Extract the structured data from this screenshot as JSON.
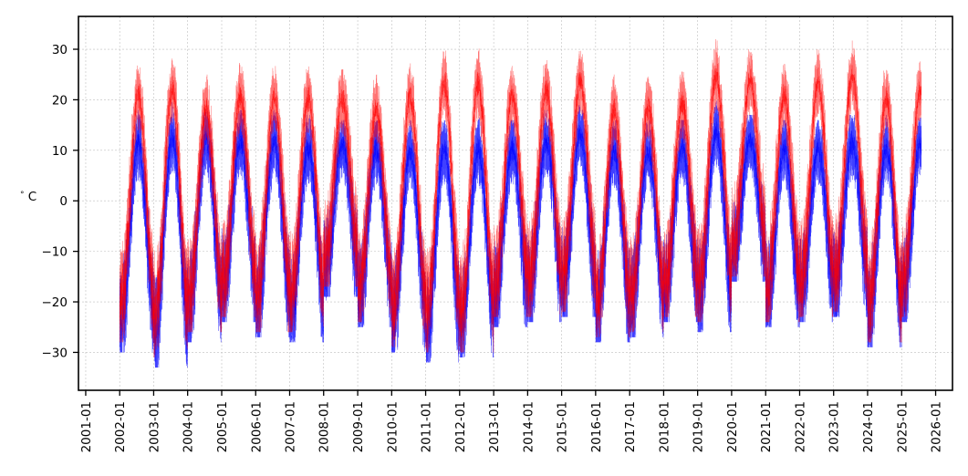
{
  "chart_data": {
    "type": "line",
    "title": "",
    "xlabel": "",
    "ylabel": "°C",
    "ylabel_prefix": "°",
    "ylabel_unit": "C",
    "x_ticks": [
      "2001-01",
      "2002-01",
      "2003-01",
      "2004-01",
      "2005-01",
      "2006-01",
      "2007-01",
      "2008-01",
      "2009-01",
      "2010-01",
      "2011-01",
      "2012-01",
      "2013-01",
      "2014-01",
      "2015-01",
      "2016-01",
      "2017-01",
      "2018-01",
      "2019-01",
      "2020-01",
      "2021-01",
      "2022-01",
      "2023-01",
      "2024-01",
      "2025-01",
      "2026-01"
    ],
    "y_ticks": [
      30,
      20,
      10,
      0,
      -10,
      -20,
      -30
    ],
    "y_tick_labels": [
      "30",
      "20",
      "10",
      "0",
      "−10",
      "−20",
      "−30"
    ],
    "xlim": [
      "2000-10-15",
      "2026-07-01"
    ],
    "ylim": [
      -37.5,
      36.5
    ],
    "data_start": "2002-01-01",
    "data_end": "2025-07-31",
    "grid": true,
    "series": [
      {
        "color": "#0000ff",
        "annual_min_approx": [
          -30,
          -33,
          -28,
          -24,
          -27,
          -28,
          -19,
          -25,
          -30,
          -32,
          -31,
          -25,
          -24,
          -23,
          -28,
          -27,
          -24,
          -26,
          -16,
          -25,
          -24,
          -23,
          -29,
          -24
        ],
        "annual_max_approx": [
          18,
          20,
          19,
          18,
          18,
          17,
          16,
          16,
          16,
          17,
          17,
          16,
          18,
          19,
          16,
          16,
          16,
          20,
          17,
          16,
          16,
          17,
          17,
          17
        ],
        "summary_max": 20,
        "summary_min": -33
      },
      {
        "color": "#ff0000",
        "annual_min_approx": [
          -28,
          -31,
          -26,
          -23,
          -26,
          -26,
          -17,
          -24,
          -29,
          -30,
          -30,
          -23,
          -23,
          -22,
          -27,
          -26,
          -23,
          -24,
          -15,
          -24,
          -23,
          -22,
          -28,
          -23
        ],
        "annual_max_approx": [
          29,
          31,
          25,
          28,
          28,
          28,
          26,
          25,
          29,
          32,
          32,
          28,
          29,
          31,
          25,
          26,
          26,
          33,
          30,
          28,
          31,
          32,
          28,
          29
        ],
        "summary_max": 33,
        "summary_min": -31
      }
    ]
  }
}
